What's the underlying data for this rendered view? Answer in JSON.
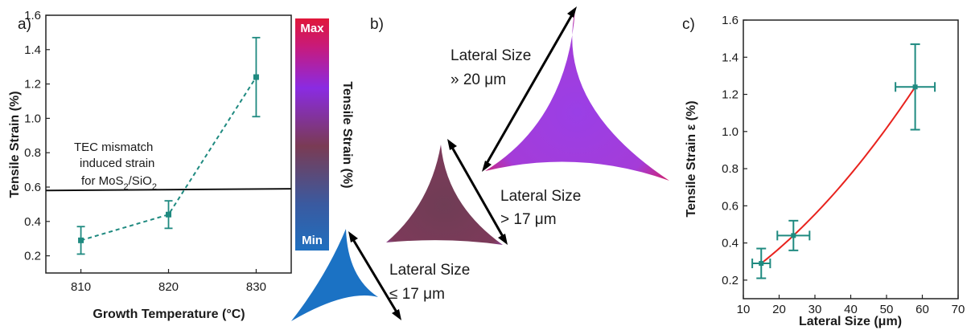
{
  "panels": {
    "a": "a)",
    "b": "b)",
    "c": "c)"
  },
  "colors": {
    "teal": "#1f8a80",
    "fit": "#e8231e",
    "cbar_top": "#e0173a",
    "cbar_mid_purple": "#8a2be2",
    "cbar_bottom": "#1f6fbf",
    "small_flake": "#1b72c4",
    "medium_flake": "#7a3b54",
    "large_flake": "#9a3fe6"
  },
  "colorbar": {
    "max_label": "Max",
    "min_label": "Min",
    "title": "Tensile Strain (%)"
  },
  "flakes": [
    {
      "label1": "Lateral Size",
      "label2": "≤ 17 μm"
    },
    {
      "label1": "Lateral Size",
      "label2": "> 17 μm"
    },
    {
      "label1": "Lateral Size",
      "label2": "» 20 μm"
    }
  ],
  "chart_data": [
    {
      "type": "line",
      "xlabel": "Growth Temperature (°C)",
      "ylabel": "Tensile Strain (%)",
      "xlim": [
        806,
        834
      ],
      "ylim": [
        0.1,
        1.6
      ],
      "xticks": [
        810,
        820,
        830
      ],
      "yticks": [
        0.2,
        0.4,
        0.6,
        0.8,
        1.0,
        1.2,
        1.4,
        1.6
      ],
      "series": [
        {
          "x": [
            810,
            820,
            830
          ],
          "y": [
            0.29,
            0.44,
            1.24
          ],
          "yerr": [
            0.08,
            0.08,
            0.23
          ],
          "style": "dashed with square markers"
        }
      ],
      "reference_line": {
        "y": 0.58,
        "y_end": 0.59,
        "label": [
          "TEC mismatch",
          "induced strain",
          "for MoS2/SiO2"
        ]
      },
      "grid": false
    },
    {
      "type": "scatter",
      "xlabel": "Lateral Size (μm)",
      "ylabel": "Tensile Strain ε (%)",
      "xlim": [
        10,
        70
      ],
      "ylim": [
        0.1,
        1.6
      ],
      "xticks": [
        10,
        20,
        30,
        40,
        50,
        60,
        70
      ],
      "yticks": [
        0.2,
        0.4,
        0.6,
        0.8,
        1.0,
        1.2,
        1.4,
        1.6
      ],
      "series": [
        {
          "x": [
            15,
            24,
            58
          ],
          "y": [
            0.29,
            0.44,
            1.24
          ],
          "xerr": [
            2.5,
            4.5,
            5.5
          ],
          "yerr": [
            0.08,
            0.08,
            0.23
          ]
        }
      ],
      "fit": {
        "x_range": [
          15,
          58
        ]
      },
      "grid": false
    }
  ]
}
